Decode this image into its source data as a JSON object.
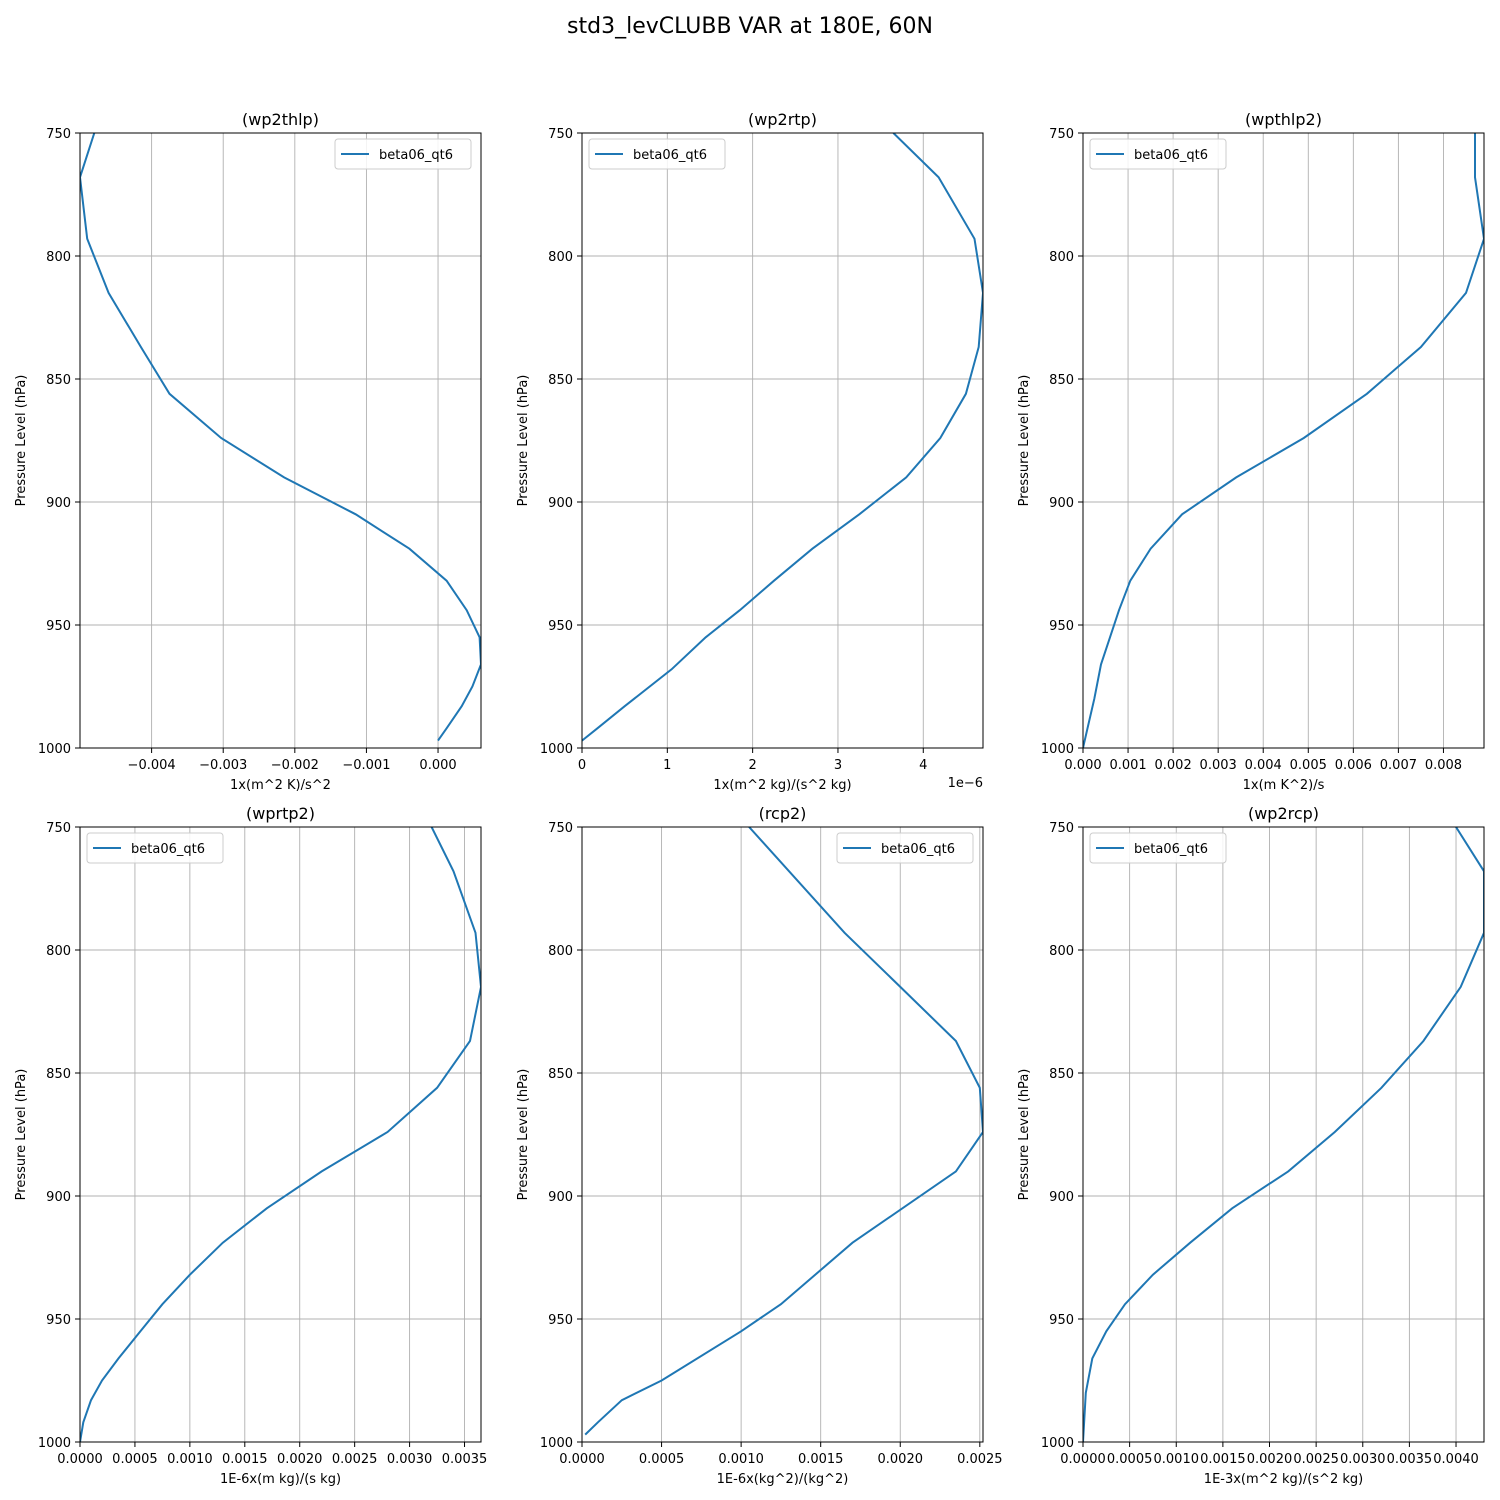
{
  "figure": {
    "title": "std3_levCLUBB VAR at 180E, 60N",
    "line_color": "#1f77b4"
  },
  "chart_data": [
    {
      "type": "line",
      "title": "(wp2thlp)",
      "xlabel": "1x(m^2 K)/s^2",
      "ylabel": "Pressure Level (hPa)",
      "offset_text": "",
      "xlim": [
        -0.005,
        0.0006
      ],
      "ylim": [
        1000,
        750
      ],
      "inverted_y": true,
      "xticks": [
        -0.004,
        -0.003,
        -0.002,
        -0.001,
        0.0
      ],
      "xtick_labels": [
        "−0.004",
        "−0.003",
        "−0.002",
        "−0.001",
        "0.000"
      ],
      "yticks": [
        750,
        800,
        850,
        900,
        950
      ],
      "ytick_labels": [
        "750",
        "800",
        "850",
        "900",
        "950"
      ],
      "ybottom_label": "1000",
      "grid": true,
      "legend": {
        "position": "upper right",
        "entries": [
          "beta06_qt6"
        ]
      },
      "series": [
        {
          "name": "beta06_qt6",
          "x": [
            -0.0048,
            -0.005,
            -0.0049,
            -0.0046,
            -0.00415,
            -0.00375,
            -0.00303,
            -0.00215,
            -0.00115,
            -0.0004,
            0.00012,
            0.0004,
            0.00058,
            0.0006,
            0.00048,
            0.00033,
            0.00012,
            0.0
          ],
          "y": [
            750,
            768,
            793,
            815,
            837,
            856,
            874,
            890,
            905,
            919,
            932,
            944,
            955,
            966,
            975,
            983,
            992,
            997
          ]
        }
      ]
    },
    {
      "type": "line",
      "title": "(wp2rtp)",
      "xlabel": "1x(m^2 kg)/(s^2 kg)",
      "ylabel": "Pressure Level (hPa)",
      "offset_text": "1e−6",
      "xlim": [
        0,
        4.7
      ],
      "ylim": [
        1000,
        750
      ],
      "inverted_y": true,
      "xticks": [
        0,
        1,
        2,
        3,
        4
      ],
      "xtick_labels": [
        "0",
        "1",
        "2",
        "3",
        "4"
      ],
      "yticks": [
        750,
        800,
        850,
        900,
        950
      ],
      "ytick_labels": [
        "750",
        "800",
        "850",
        "900",
        "950"
      ],
      "ybottom_label": "1000",
      "grid": true,
      "legend": {
        "position": "upper left",
        "entries": [
          "beta06_qt6"
        ]
      },
      "series": [
        {
          "name": "beta06_qt6",
          "x": [
            3.65,
            4.18,
            4.6,
            4.7,
            4.65,
            4.5,
            4.2,
            3.8,
            3.25,
            2.7,
            2.25,
            1.85,
            1.45,
            1.05,
            0.5,
            0.18,
            0.0
          ],
          "y": [
            750,
            768,
            793,
            815,
            837,
            856,
            874,
            890,
            905,
            919,
            932,
            944,
            955,
            968,
            983,
            992,
            997
          ]
        }
      ]
    },
    {
      "type": "line",
      "title": "(wpthlp2)",
      "xlabel": "1x(m K^2)/s",
      "ylabel": "Pressure Level (hPa)",
      "offset_text": "",
      "xlim": [
        0,
        0.0089
      ],
      "ylim": [
        1000,
        750
      ],
      "inverted_y": true,
      "xticks": [
        0.0,
        0.001,
        0.002,
        0.003,
        0.004,
        0.005,
        0.006,
        0.007,
        0.008
      ],
      "xtick_labels": [
        "0.000",
        "0.001",
        "0.002",
        "0.003",
        "0.004",
        "0.005",
        "0.006",
        "0.007",
        "0.008"
      ],
      "yticks": [
        750,
        800,
        850,
        900,
        950
      ],
      "ytick_labels": [
        "750",
        "800",
        "850",
        "900",
        "950"
      ],
      "ybottom_label": "1000",
      "grid": true,
      "legend": {
        "position": "upper left",
        "entries": [
          "beta06_qt6"
        ]
      },
      "series": [
        {
          "name": "beta06_qt6",
          "x": [
            0.0087,
            0.0087,
            0.0089,
            0.0085,
            0.0075,
            0.0063,
            0.0049,
            0.0034,
            0.0022,
            0.0015,
            0.00105,
            0.0008,
            0.0006,
            0.0004,
            0.00025,
            0.0001,
            0.0
          ],
          "y": [
            750,
            768,
            793,
            815,
            837,
            856,
            874,
            890,
            905,
            919,
            932,
            944,
            955,
            966,
            980,
            992,
            1000
          ]
        }
      ]
    },
    {
      "type": "line",
      "title": "(wprtp2)",
      "xlabel": "1E-6x(m kg)/(s kg)",
      "ylabel": "Pressure Level (hPa)",
      "offset_text": "",
      "xlim": [
        0,
        0.00365
      ],
      "ylim": [
        1000,
        750
      ],
      "inverted_y": true,
      "xticks": [
        0.0,
        0.0005,
        0.001,
        0.0015,
        0.002,
        0.0025,
        0.003,
        0.0035
      ],
      "xtick_labels": [
        "0.0000",
        "0.0005",
        "0.0010",
        "0.0015",
        "0.0020",
        "0.0025",
        "0.0030",
        "0.0035"
      ],
      "yticks": [
        750,
        800,
        850,
        900,
        950
      ],
      "ytick_labels": [
        "750",
        "800",
        "850",
        "900",
        "950"
      ],
      "ybottom_label": "1000",
      "grid": true,
      "legend": {
        "position": "upper left",
        "entries": [
          "beta06_qt6"
        ]
      },
      "series": [
        {
          "name": "beta06_qt6",
          "x": [
            0.0032,
            0.0034,
            0.0036,
            0.00365,
            0.00355,
            0.00325,
            0.0028,
            0.0022,
            0.0017,
            0.0013,
            0.001,
            0.00075,
            0.00055,
            0.00035,
            0.0002,
            0.0001,
            3e-05,
            0.0
          ],
          "y": [
            750,
            768,
            793,
            815,
            837,
            856,
            874,
            890,
            905,
            919,
            932,
            944,
            955,
            966,
            975,
            983,
            992,
            1000
          ]
        }
      ]
    },
    {
      "type": "line",
      "title": "(rcp2)",
      "xlabel": "1E-6x(kg^2)/(kg^2)",
      "ylabel": "Pressure Level (hPa)",
      "offset_text": "",
      "xlim": [
        0,
        0.00252
      ],
      "ylim": [
        1000,
        750
      ],
      "inverted_y": true,
      "xticks": [
        0.0,
        0.0005,
        0.001,
        0.0015,
        0.002,
        0.0025
      ],
      "xtick_labels": [
        "0.0000",
        "0.0005",
        "0.0010",
        "0.0015",
        "0.0020",
        "0.0025"
      ],
      "yticks": [
        750,
        800,
        850,
        900,
        950
      ],
      "ytick_labels": [
        "750",
        "800",
        "850",
        "900",
        "950"
      ],
      "ybottom_label": "1000",
      "grid": true,
      "legend": {
        "position": "upper right",
        "entries": [
          "beta06_qt6"
        ]
      },
      "series": [
        {
          "name": "beta06_qt6",
          "x": [
            0.00105,
            0.00165,
            0.002,
            0.00235,
            0.0025,
            0.00252,
            0.00235,
            0.0017,
            0.00125,
            0.001,
            0.0005,
            0.00025,
            0.0001,
            2e-05
          ],
          "y": [
            750,
            793,
            815,
            837,
            856,
            874,
            890,
            919,
            944,
            955,
            975,
            983,
            992,
            997
          ]
        }
      ]
    },
    {
      "type": "line",
      "title": "(wp2rcp)",
      "xlabel": "1E-3x(m^2 kg)/(s^2 kg)",
      "ylabel": "Pressure Level (hPa)",
      "offset_text": "",
      "xlim": [
        0,
        0.0043
      ],
      "ylim": [
        1000,
        750
      ],
      "inverted_y": true,
      "xticks": [
        0.0,
        0.0005,
        0.001,
        0.0015,
        0.002,
        0.0025,
        0.003,
        0.0035,
        0.004
      ],
      "xtick_labels": [
        "0.0000",
        "0.0005",
        "0.0010",
        "0.0015",
        "0.0020",
        "0.0025",
        "0.0030",
        "0.0035",
        "0.0040"
      ],
      "yticks": [
        750,
        800,
        850,
        900,
        950
      ],
      "ytick_labels": [
        "750",
        "800",
        "850",
        "900",
        "950"
      ],
      "ybottom_label": "1000",
      "grid": true,
      "legend": {
        "position": "upper left",
        "entries": [
          "beta06_qt6"
        ]
      },
      "series": [
        {
          "name": "beta06_qt6",
          "x": [
            0.004,
            0.0043,
            0.0043,
            0.00405,
            0.00365,
            0.0032,
            0.0027,
            0.0022,
            0.0016,
            0.00115,
            0.00075,
            0.00045,
            0.00025,
            0.0001,
            3e-05,
            0.0
          ],
          "y": [
            750,
            768,
            793,
            815,
            837,
            856,
            874,
            890,
            905,
            919,
            932,
            944,
            955,
            966,
            980,
            1000
          ]
        }
      ]
    }
  ]
}
